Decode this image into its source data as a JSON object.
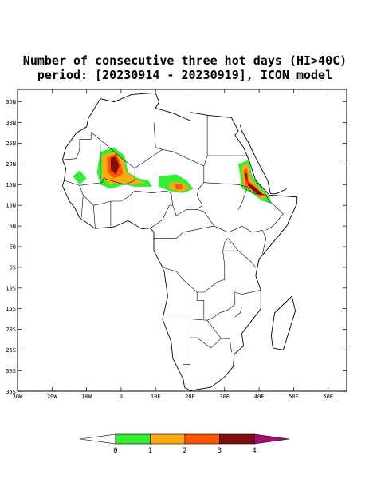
{
  "title": [
    "Number of consecutive three hot days (HI>40C)",
    "period: [20230914 - 20230919], ICON model"
  ],
  "lat_labels": [
    "35N",
    "30N",
    "25N",
    "20N",
    "15N",
    "10N",
    "5N",
    "EQ",
    "5S",
    "10S",
    "15S",
    "20S",
    "25S",
    "30S",
    "35S"
  ],
  "lon_labels": [
    "30W",
    "20W",
    "10W",
    "0",
    "10E",
    "20E",
    "30E",
    "40E",
    "50E",
    "60E"
  ],
  "colorbar": {
    "labels": [
      "0",
      "1",
      "2",
      "3",
      "4"
    ],
    "colors": [
      "#ffffff",
      "#33ee33",
      "#ffaa11",
      "#ff5500",
      "#801010",
      "#a01070"
    ]
  }
}
